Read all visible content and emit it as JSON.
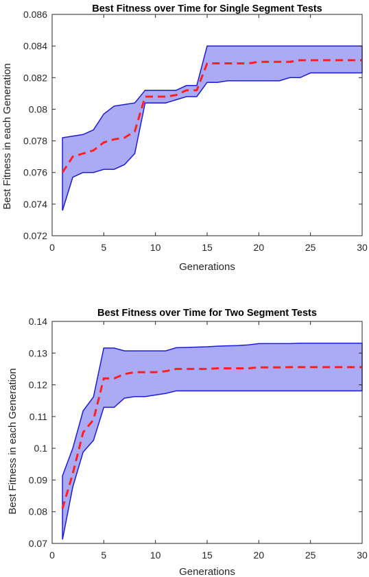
{
  "chart_data": [
    {
      "type": "area",
      "title": "Best Fitness over Time for Single Segment Tests",
      "xlabel": "Generations",
      "ylabel": "Best Fitness in each Generation",
      "xlim": [
        0,
        30
      ],
      "ylim": [
        0.072,
        0.086
      ],
      "xticks": [
        0,
        5,
        10,
        15,
        20,
        25,
        30
      ],
      "xtick_labels": [
        "0",
        "5",
        "10",
        "15",
        "20",
        "25",
        "30"
      ],
      "yticks": [
        0.072,
        0.074,
        0.076,
        0.078,
        0.08,
        0.082,
        0.084,
        0.086
      ],
      "ytick_labels": [
        "0.072",
        "0.074",
        "0.076",
        "0.078",
        "0.08",
        "0.082",
        "0.084",
        "0.086"
      ],
      "grid": false,
      "x": [
        1,
        2,
        3,
        4,
        5,
        6,
        7,
        8,
        9,
        10,
        11,
        12,
        13,
        14,
        15,
        16,
        17,
        18,
        19,
        20,
        21,
        22,
        23,
        24,
        25,
        26,
        27,
        28,
        29,
        30
      ],
      "series": [
        {
          "role": "upper",
          "values": [
            0.0782,
            0.0783,
            0.0784,
            0.0787,
            0.0797,
            0.0802,
            0.0803,
            0.0804,
            0.0812,
            0.0812,
            0.0812,
            0.0812,
            0.0815,
            0.0815,
            0.084,
            0.084,
            0.084,
            0.084,
            0.084,
            0.084,
            0.084,
            0.084,
            0.084,
            0.084,
            0.084,
            0.084,
            0.084,
            0.084,
            0.084,
            0.084
          ]
        },
        {
          "role": "lower",
          "values": [
            0.0736,
            0.0757,
            0.076,
            0.076,
            0.0762,
            0.0762,
            0.0765,
            0.0772,
            0.0804,
            0.0804,
            0.0804,
            0.0806,
            0.0808,
            0.0808,
            0.0817,
            0.0817,
            0.0818,
            0.0818,
            0.0818,
            0.0818,
            0.0818,
            0.0818,
            0.082,
            0.082,
            0.0823,
            0.0823,
            0.0823,
            0.0823,
            0.0823,
            0.0823
          ]
        },
        {
          "role": "median",
          "values": [
            0.076,
            0.077,
            0.0772,
            0.0774,
            0.0779,
            0.0781,
            0.0782,
            0.0786,
            0.0808,
            0.0808,
            0.0808,
            0.0809,
            0.0812,
            0.0812,
            0.0829,
            0.0829,
            0.0829,
            0.0829,
            0.0829,
            0.083,
            0.083,
            0.083,
            0.083,
            0.0831,
            0.0831,
            0.0831,
            0.0831,
            0.0831,
            0.0831,
            0.0831
          ]
        }
      ]
    },
    {
      "type": "area",
      "title": "Best Fitness over Time for Two Segment Tests",
      "xlabel": "Generations",
      "ylabel": "Best Fitness in each Generation",
      "xlim": [
        0,
        30
      ],
      "ylim": [
        0.07,
        0.14
      ],
      "xticks": [
        0,
        5,
        10,
        15,
        20,
        25,
        30
      ],
      "xtick_labels": [
        "0",
        "5",
        "10",
        "15",
        "20",
        "25",
        "30"
      ],
      "yticks": [
        0.07,
        0.08,
        0.09,
        0.1,
        0.11,
        0.12,
        0.13,
        0.14
      ],
      "ytick_labels": [
        "0.07",
        "0.08",
        "0.09",
        "0.1",
        "0.11",
        "0.12",
        "0.13",
        "0.14"
      ],
      "grid": false,
      "x": [
        1,
        2,
        3,
        4,
        5,
        6,
        7,
        8,
        9,
        10,
        11,
        12,
        13,
        14,
        15,
        16,
        17,
        18,
        19,
        20,
        21,
        22,
        23,
        24,
        25,
        26,
        27,
        28,
        29,
        30
      ],
      "series": [
        {
          "role": "upper",
          "values": [
            0.0913,
            0.1,
            0.1118,
            0.1162,
            0.1316,
            0.1316,
            0.1307,
            0.1307,
            0.1307,
            0.1307,
            0.1307,
            0.1317,
            0.1318,
            0.1319,
            0.132,
            0.1322,
            0.1323,
            0.1324,
            0.1326,
            0.133,
            0.133,
            0.133,
            0.133,
            0.1331,
            0.1331,
            0.1331,
            0.1331,
            0.1331,
            0.1331,
            0.1331
          ]
        },
        {
          "role": "lower",
          "values": [
            0.0712,
            0.0878,
            0.0988,
            0.1025,
            0.1129,
            0.1129,
            0.1158,
            0.1163,
            0.1163,
            0.1168,
            0.1173,
            0.1181,
            0.1181,
            0.1181,
            0.1181,
            0.1181,
            0.1181,
            0.1181,
            0.1181,
            0.1181,
            0.1181,
            0.1181,
            0.1181,
            0.1181,
            0.1181,
            0.1181,
            0.1181,
            0.1181,
            0.1181,
            0.1181
          ]
        },
        {
          "role": "median",
          "values": [
            0.081,
            0.092,
            0.105,
            0.109,
            0.122,
            0.122,
            0.1234,
            0.124,
            0.124,
            0.124,
            0.1243,
            0.125,
            0.125,
            0.125,
            0.125,
            0.1252,
            0.1252,
            0.1252,
            0.1252,
            0.1255,
            0.1255,
            0.1255,
            0.1256,
            0.1256,
            0.1256,
            0.1256,
            0.1256,
            0.1256,
            0.1256,
            0.1256
          ]
        }
      ]
    }
  ],
  "colors": {
    "band_fill": "#aaaaf5",
    "band_edge": "#1a1adb",
    "median_line": "#ff1f1f",
    "axis": "#262626"
  }
}
